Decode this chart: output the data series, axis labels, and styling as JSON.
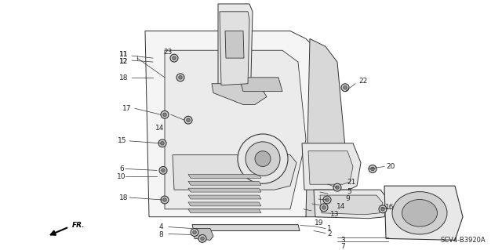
{
  "bg_color": "#ffffff",
  "diagram_code": "SCV4-B3920A",
  "line_color": "#333333",
  "text_color": "#222222",
  "font_size": 6.5,
  "panel_face": "#f5f5f5",
  "inner_face": "#ebebeb",
  "dark_face": "#d8d8d8",
  "vert_strip_face": "#e8e8e8"
}
